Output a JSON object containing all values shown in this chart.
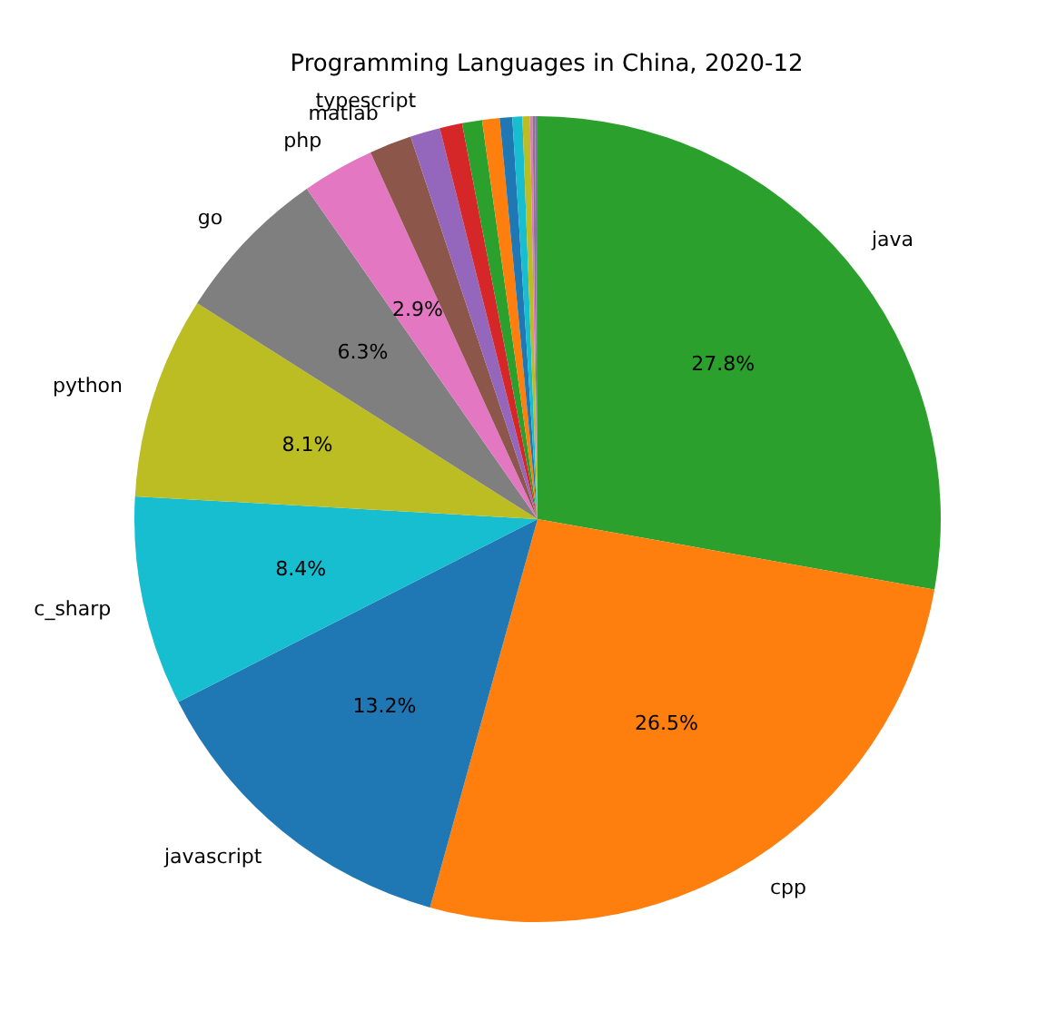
{
  "chart_data": {
    "type": "pie",
    "title": "Programming Languages in China, 2020-12",
    "categories": [
      "java",
      "cpp",
      "javascript",
      "c_sharp",
      "python",
      "go",
      "php",
      "matlab",
      "typescript",
      null,
      null,
      null,
      null,
      null,
      null,
      null,
      null,
      null
    ],
    "values": [
      27.8,
      26.5,
      13.2,
      8.4,
      8.1,
      6.3,
      2.9,
      1.7,
      1.2,
      0.9,
      0.8,
      0.7,
      0.5,
      0.4,
      0.3,
      0.1,
      0.1,
      0.1
    ],
    "colors": [
      "#2ca02c",
      "#ff7f0e",
      "#1f77b4",
      "#17becf",
      "#bcbd22",
      "#7f7f7f",
      "#e377c2",
      "#8c564b",
      "#9467bd",
      "#d62728",
      "#2ca02c",
      "#ff7f0e",
      "#1f77b4",
      "#17becf",
      "#bcbd22",
      "#e377c2",
      "#7f7f7f",
      "#9467bd"
    ],
    "value_labels": [
      "27.8%",
      "26.5%",
      "13.2%",
      "8.4%",
      "8.1%",
      "6.3%",
      "2.9%",
      null,
      null,
      null,
      null,
      null,
      null,
      null,
      null,
      null,
      null,
      null
    ],
    "legend": false
  }
}
